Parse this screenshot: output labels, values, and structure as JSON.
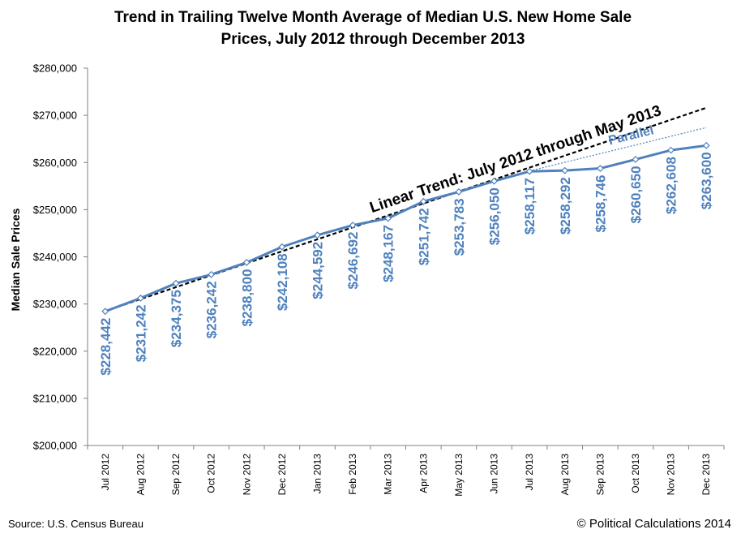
{
  "chart_data": {
    "type": "line",
    "title_line1": "Trend in Trailing Twelve Month Average of Median U.S. New Home Sale",
    "title_line2": "Prices, July 2012 through December 2013",
    "ylabel": "Median Sale Prices",
    "xlabel": "",
    "ylim": [
      200000,
      280000
    ],
    "y_ticks": [
      200000,
      210000,
      220000,
      230000,
      240000,
      250000,
      260000,
      270000,
      280000
    ],
    "y_tick_labels": [
      "$200,000",
      "$210,000",
      "$220,000",
      "$230,000",
      "$240,000",
      "$250,000",
      "$260,000",
      "$270,000",
      "$280,000"
    ],
    "grid": false,
    "categories": [
      "Jul 2012",
      "Aug 2012",
      "Sep 2012",
      "Oct 2012",
      "Nov 2012",
      "Dec 2012",
      "Jan 2013",
      "Feb 2013",
      "Mar 2013",
      "Apr 2013",
      "May 2013",
      "Jun 2013",
      "Jul 2013",
      "Aug 2013",
      "Sep 2013",
      "Oct 2013",
      "Nov 2013",
      "Dec 2013"
    ],
    "series": [
      {
        "values": [
          228442,
          231242,
          234375,
          236242,
          238800,
          242108,
          244592,
          246692,
          248167,
          251742,
          253783,
          256050,
          258117,
          258292,
          258746,
          260650,
          262608,
          263600
        ],
        "data_labels": [
          "$228,442",
          "$231,242",
          "$234,375",
          "$236,242",
          "$238,800",
          "$242,108",
          "$244,592",
          "$246,692",
          "$248,167",
          "$251,742",
          "$253,783",
          "$256,050",
          "$258,117",
          "$258,292",
          "$258,746",
          "$260,650",
          "$262,608",
          "$263,600"
        ],
        "color": "#4f81bd"
      }
    ],
    "trend_lines": [
      {
        "label": "Linear Trend: July 2012 through May 2013",
        "start_category": "Jul 2012",
        "start_value": 228500,
        "end_category": "Dec 2013",
        "end_value": 271600,
        "style": "dashed",
        "color": "#000000"
      },
      {
        "label": "Parallel",
        "start_category": "Jul 2013",
        "start_value": 258200,
        "end_category": "Dec 2013",
        "end_value": 267400,
        "style": "dotted",
        "color": "#4f81bd"
      }
    ]
  },
  "footer": {
    "source": "Source: U.S. Census Bureau",
    "copyright": "© Political Calculations 2014"
  }
}
